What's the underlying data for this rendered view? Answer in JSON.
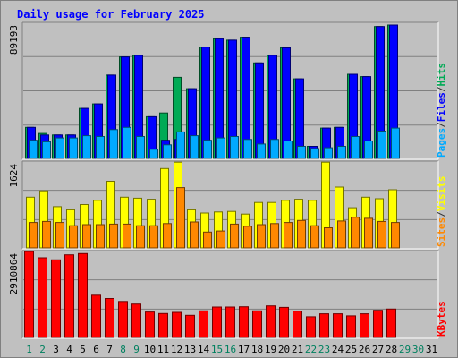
{
  "chart_data": {
    "type": "bar",
    "title": "Daily usage for February 2025",
    "categories": [
      "1",
      "2",
      "3",
      "4",
      "5",
      "6",
      "7",
      "8",
      "9",
      "10",
      "11",
      "12",
      "13",
      "14",
      "15",
      "16",
      "17",
      "18",
      "19",
      "20",
      "21",
      "22",
      "23",
      "24",
      "25",
      "26",
      "27",
      "28",
      "29",
      "30",
      "31"
    ],
    "weekend_days": [
      "1",
      "2",
      "8",
      "9",
      "15",
      "16",
      "22",
      "23",
      "29",
      "30"
    ],
    "panels": [
      {
        "ymax_label": "89193",
        "ymax": 89193,
        "axis_label_parts": [
          "Pages",
          "/",
          "Files",
          "/",
          "Hits"
        ],
        "axis_label_colors": [
          "#00aaff",
          "#333333",
          "#0000ff",
          "#333333",
          "#00aa55"
        ],
        "series": [
          {
            "name": "Hits",
            "color": "#00aa55",
            "values": [
              20500,
              16500,
              15500,
              15500,
              33000,
              36000,
              55000,
              67000,
              68000,
              27500,
              30000,
              53500,
              46000,
              73500,
              79000,
              78000,
              80000,
              63000,
              68000,
              73000,
              52500,
              8000,
              20000,
              20500,
              55500,
              54000,
              87000,
              88000,
              0,
              0,
              0
            ]
          },
          {
            "name": "Files",
            "color": "#0000ff",
            "values": [
              20500,
              15500,
              15500,
              15500,
              33000,
              36000,
              55000,
              67000,
              68000,
              27500,
              12000,
              12500,
              46000,
              73500,
              79000,
              78000,
              80000,
              63000,
              68000,
              73000,
              52500,
              8000,
              20000,
              20500,
              55500,
              54000,
              87000,
              88000,
              0,
              0,
              0
            ]
          },
          {
            "name": "Pages",
            "color": "#00aaff",
            "values": [
              12000,
              11000,
              13500,
              13500,
              15000,
              14500,
              19000,
              20500,
              14500,
              6000,
              9000,
              17500,
              15000,
              12000,
              13500,
              14500,
              12500,
              9500,
              12500,
              11500,
              8000,
              6500,
              7000,
              8000,
              14500,
              11500,
              18000,
              20000,
              0,
              0,
              0
            ]
          }
        ]
      },
      {
        "ymax_label": "1624",
        "ymax": 1624,
        "axis_label_parts": [
          "Sites",
          "/",
          "Visits"
        ],
        "axis_label_colors": [
          "#ff8800",
          "#333333",
          "#ffff00"
        ],
        "series": [
          {
            "name": "Visits",
            "color": "#ffff00",
            "values": [
              960,
              1080,
              780,
              720,
              820,
              900,
              1260,
              960,
              940,
              920,
              1500,
              1620,
              720,
              660,
              680,
              690,
              640,
              860,
              860,
              900,
              920,
              900,
              1620,
              1150,
              760,
              960,
              930,
              1100,
              0,
              0,
              0
            ]
          },
          {
            "name": "Sites",
            "color": "#ff8800",
            "values": [
              480,
              500,
              480,
              420,
              440,
              440,
              450,
              450,
              420,
              420,
              460,
              1140,
              490,
              300,
              320,
              450,
              410,
              440,
              460,
              480,
              520,
              420,
              380,
              510,
              580,
              560,
              500,
              480,
              0,
              0,
              0
            ]
          }
        ]
      },
      {
        "ymax_label": "2910864",
        "ymax": 2910864,
        "axis_label_parts": [
          "KBytes"
        ],
        "axis_label_colors": [
          "#ff0000"
        ],
        "series": [
          {
            "name": "KBytes",
            "color": "#ff0000",
            "values": [
              2910864,
              2700000,
              2630000,
              2800000,
              2840000,
              1430000,
              1320000,
              1220000,
              1130000,
              860000,
              810000,
              850000,
              750000,
              900000,
              1030000,
              1030000,
              1040000,
              900000,
              1070000,
              1020000,
              890000,
              700000,
              800000,
              800000,
              730000,
              800000,
              920000,
              960000,
              0,
              0,
              0
            ]
          }
        ]
      }
    ],
    "colors": {
      "background": "#c0c0c0",
      "title": "#0000ff",
      "grid": "#808080",
      "weekday_label": "#000000",
      "weekend_label": "#00805f"
    }
  }
}
